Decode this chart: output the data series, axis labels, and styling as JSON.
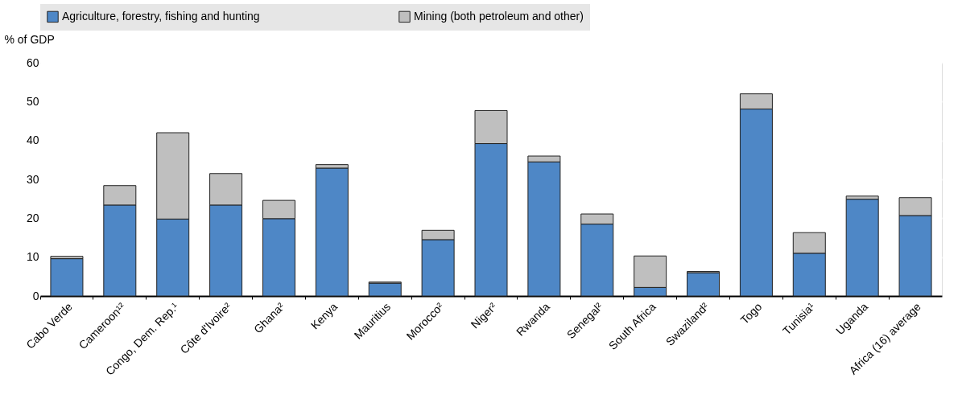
{
  "chart_data": {
    "type": "bar",
    "stacked": true,
    "ylabel": "% of GDP",
    "categories": [
      "Cabo Verde",
      "Cameroon¹²",
      "Congo, Dem. Rep.¹",
      "Côte d'Ivoire²",
      "Ghana²",
      "Kenya",
      "Mauritius",
      "Morocco²",
      "Niger²",
      "Rwanda",
      "Senegal²",
      "South Africa",
      "Swaziland²",
      "Togo",
      "Tunisia¹",
      "Uganda",
      "Africa (16) average"
    ],
    "series": [
      {
        "name": "Agriculture, forestry, fishing and hunting",
        "color": "#4e87c6",
        "values": [
          9.6,
          23.4,
          19.8,
          23.4,
          19.9,
          32.9,
          3.3,
          14.5,
          39.2,
          34.5,
          18.5,
          2.2,
          6.0,
          48.1,
          11.0,
          24.9,
          20.7
        ]
      },
      {
        "name": "Mining (both petroleum and other)",
        "color": "#bfbfbf",
        "values": [
          0.6,
          5.0,
          22.2,
          8.1,
          4.7,
          0.9,
          0.3,
          2.4,
          8.5,
          1.5,
          2.6,
          8.1,
          0.3,
          3.9,
          5.3,
          0.8,
          4.6
        ]
      }
    ],
    "ylim": [
      0,
      60
    ],
    "yticks": [
      0,
      10,
      20,
      30,
      40,
      50,
      60
    ],
    "grid": true,
    "legend": "top"
  }
}
